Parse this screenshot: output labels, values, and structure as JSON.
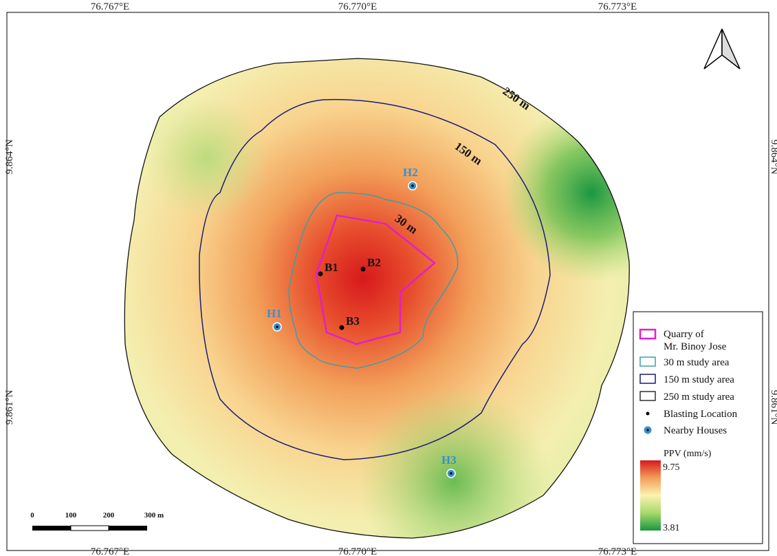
{
  "grid_labels": {
    "top": [
      "76.767°E",
      "76.770°E",
      "76.773°E"
    ],
    "bottom": [
      "76.767°E",
      "76.770°E",
      "76.773°E"
    ],
    "left": [
      "9.864°N",
      "9.861°N"
    ],
    "right": [
      "9.864°N",
      "9.861°N"
    ]
  },
  "contours": [
    {
      "label": "250 m"
    },
    {
      "label": "150 m"
    },
    {
      "label": "30 m"
    }
  ],
  "blasting_points": [
    {
      "label": "B1"
    },
    {
      "label": "B2"
    },
    {
      "label": "B3"
    }
  ],
  "houses": [
    {
      "label": "H1"
    },
    {
      "label": "H2"
    },
    {
      "label": "H3"
    }
  ],
  "legend": {
    "items": [
      {
        "label": [
          "Quarry of",
          "Mr. Binoy Jose"
        ]
      },
      {
        "label": "30 m study area"
      },
      {
        "label": "150 m study area"
      },
      {
        "label": "250 m study area"
      },
      {
        "label": "Blasting Location"
      },
      {
        "label": "Nearby Houses"
      }
    ],
    "ppv_title": "PPV (mm/s)",
    "ppv_max": 9.75,
    "ppv_min": 3.81
  },
  "scale_bar": {
    "labels": [
      "0",
      "100",
      "200",
      "300 m"
    ]
  }
}
